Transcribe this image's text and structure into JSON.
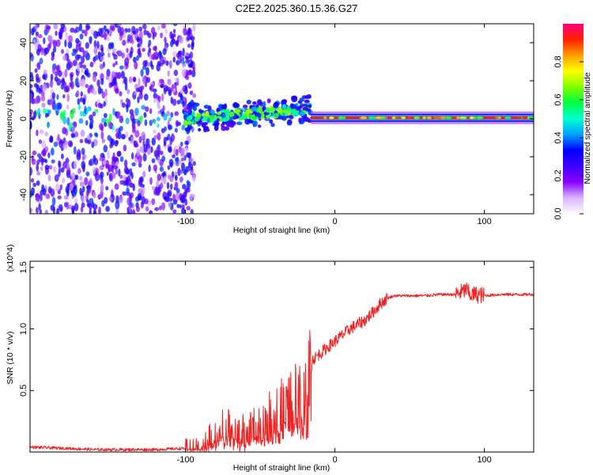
{
  "title": "C2E2.2025.360.15.36.G27",
  "chart_data": [
    {
      "type": "heatmap",
      "name": "spectrogram",
      "xlabel": "Height of straight line (km)",
      "ylabel": "Frequency (Hz)",
      "xlim": [
        -204,
        133
      ],
      "ylim": [
        -50,
        50
      ],
      "xticks": [
        -100,
        0,
        100
      ],
      "xtick_labels": [
        "-100",
        "0",
        "100"
      ],
      "yticks": [
        -40,
        -20,
        0,
        20,
        40
      ],
      "ytick_labels": [
        "-40",
        "-20",
        "0",
        "20",
        "40"
      ],
      "colorbar": {
        "label": "Normalized spectral amplitude",
        "range": [
          0,
          1
        ],
        "ticks": [
          0,
          0.2,
          0.4,
          0.6,
          0.8
        ],
        "tick_labels": [
          "0.0",
          "0.2",
          "0.4",
          "0.6",
          "0.8"
        ],
        "colormap": [
          "#ffffff",
          "#d8b4ff",
          "#8c00ff",
          "#4000ff",
          "#0000ff",
          "#00a0ff",
          "#00ffd0",
          "#00ff40",
          "#80ff00",
          "#ffff00",
          "#ffa000",
          "#ff2000",
          "#ff0080"
        ]
      },
      "regions": [
        {
          "x_from": -204,
          "x_to": -100,
          "description": "broadband scattered energy",
          "freq_spread": 50,
          "amplitude": 0.3
        },
        {
          "x_from": -100,
          "x_to": -16,
          "description": "drifting tone",
          "freq_start": 0,
          "freq_end": 5,
          "amplitude": 0.55
        },
        {
          "x_from": -16,
          "x_to": 133,
          "description": "stable tone",
          "freq": 0.5,
          "amplitude": 0.95
        }
      ]
    },
    {
      "type": "line",
      "name": "snr",
      "xlabel": "Height of straight line (km)",
      "ylabel": "SNR (10 * v/v)",
      "y_multiplier": "(x10^4)",
      "xlim": [
        -204,
        133
      ],
      "ylim": [
        0,
        1.55
      ],
      "xticks": [
        -100,
        0,
        100
      ],
      "xtick_labels": [
        "-100",
        "0",
        "100"
      ],
      "yticks": [
        0.5,
        1.0,
        1.5
      ],
      "ytick_labels": [
        "0.5",
        "1.0",
        "1.5"
      ],
      "line_color": "#ee2222",
      "series": [
        {
          "name": "SNR",
          "x": [
            -204,
            -180,
            -160,
            -140,
            -120,
            -100,
            -90,
            -85,
            -80,
            -75,
            -70,
            -60,
            -50,
            -40,
            -30,
            -20,
            -17,
            -15,
            -10,
            -5,
            0,
            5,
            10,
            20,
            25,
            30,
            35,
            40,
            50,
            60,
            70,
            80,
            85,
            88,
            90,
            95,
            100,
            110,
            120,
            133
          ],
          "y": [
            0.04,
            0.03,
            0.02,
            0.02,
            0.02,
            0.03,
            0.05,
            0.09,
            0.15,
            0.2,
            0.18,
            0.15,
            0.22,
            0.3,
            0.4,
            0.45,
            0.6,
            0.75,
            0.8,
            0.85,
            0.9,
            0.95,
            1.0,
            1.07,
            1.13,
            1.2,
            1.25,
            1.27,
            1.27,
            1.27,
            1.28,
            1.28,
            1.3,
            1.32,
            1.28,
            1.28,
            1.27,
            1.28,
            1.28,
            1.28
          ]
        }
      ]
    }
  ]
}
